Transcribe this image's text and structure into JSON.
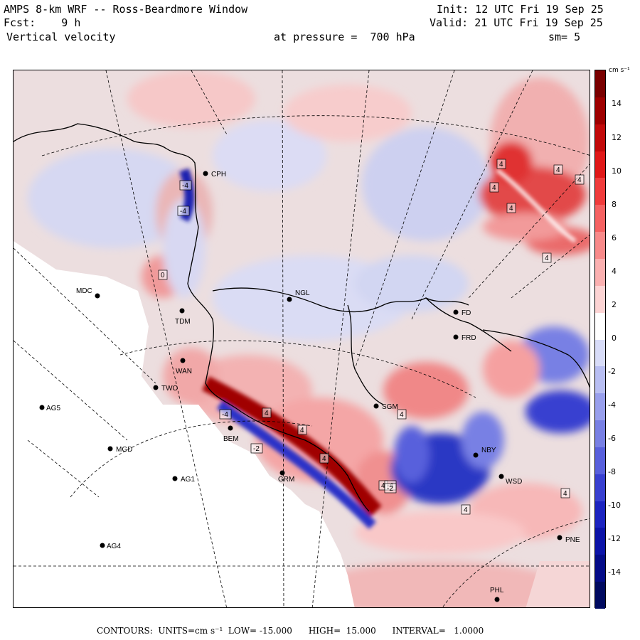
{
  "header": {
    "title": "AMPS 8-km WRF -- Ross-Beardmore Window",
    "forecast": "Fcst:    9 h",
    "field": "Vertical velocity",
    "init": "Init: 12 UTC Fri 19 Sep 25",
    "valid": "Valid: 21 UTC Fri 19 Sep 25",
    "level": "at pressure =  700 hPa",
    "smoothing": "sm= 5"
  },
  "colorbar": {
    "unit": "cm s⁻¹",
    "ticks": [
      "14",
      "12",
      "10",
      "8",
      "6",
      "4",
      "2",
      "0",
      "-2",
      "-4",
      "-6",
      "-8",
      "-10",
      "-12",
      "-14"
    ],
    "colors": [
      "#7a0000",
      "#9e0000",
      "#c20a0a",
      "#e01818",
      "#f03c3c",
      "#f56262",
      "#f88a8a",
      "#fab0b0",
      "#fcd4d4",
      "#ffffff",
      "#d8dcf8",
      "#b8bef2",
      "#989fec",
      "#7880e4",
      "#5860dc",
      "#3840d0",
      "#1c24c0",
      "#0c14a8",
      "#040c88",
      "#000a60"
    ]
  },
  "stations": [
    {
      "name": "CPH"
    },
    {
      "name": "MDC"
    },
    {
      "name": "TDM"
    },
    {
      "name": "NGL"
    },
    {
      "name": "FD"
    },
    {
      "name": "FRD"
    },
    {
      "name": "WAN"
    },
    {
      "name": "TWO"
    },
    {
      "name": "AG5"
    },
    {
      "name": "SGM"
    },
    {
      "name": "MGD"
    },
    {
      "name": "BEM"
    },
    {
      "name": "NBY"
    },
    {
      "name": "AG1"
    },
    {
      "name": "GRM"
    },
    {
      "name": "WSD"
    },
    {
      "name": "AG4"
    },
    {
      "name": "PNE"
    },
    {
      "name": "PHL"
    }
  ],
  "contour_labels": [
    "4",
    "4",
    "4",
    "4",
    "4",
    "4",
    "4",
    "4",
    "4",
    "4",
    "4",
    "4",
    "4",
    "-4",
    "-4",
    "-4",
    "-4",
    "-2",
    "-2",
    "0"
  ],
  "footer": {
    "contours": "CONTOURS:  UNITS=cm s⁻¹  LOW= -15.000      HIGH=  15.000      INTERVAL=   1.0000"
  }
}
